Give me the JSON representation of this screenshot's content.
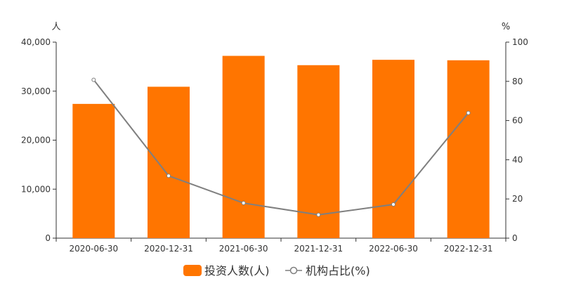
{
  "chart_data": {
    "type": "bar",
    "categories": [
      "2020-06-30",
      "2020-12-31",
      "2021-06-30",
      "2021-12-31",
      "2022-06-30",
      "2022-12-31"
    ],
    "series": [
      {
        "name": "投资人数(人)",
        "type": "bar",
        "axis": "left",
        "color": "#ff7500",
        "values": [
          27400,
          30900,
          37200,
          35300,
          36400,
          36300
        ]
      },
      {
        "name": "机构占比(%)",
        "type": "line",
        "axis": "right",
        "color": "#7f7f7f",
        "values": [
          80.8,
          31.8,
          17.9,
          11.9,
          17.2,
          63.9
        ]
      }
    ],
    "y_left": {
      "unit": "人",
      "ylim": [
        0,
        40000
      ],
      "ticks": [
        "0",
        "10,000",
        "20,000",
        "30,000",
        "40,000"
      ]
    },
    "y_right": {
      "unit": "%",
      "ylim": [
        0,
        100
      ],
      "ticks": [
        "0",
        "20",
        "40",
        "60",
        "80",
        "100"
      ]
    },
    "legend_position": "bottom-center",
    "grid": false
  }
}
